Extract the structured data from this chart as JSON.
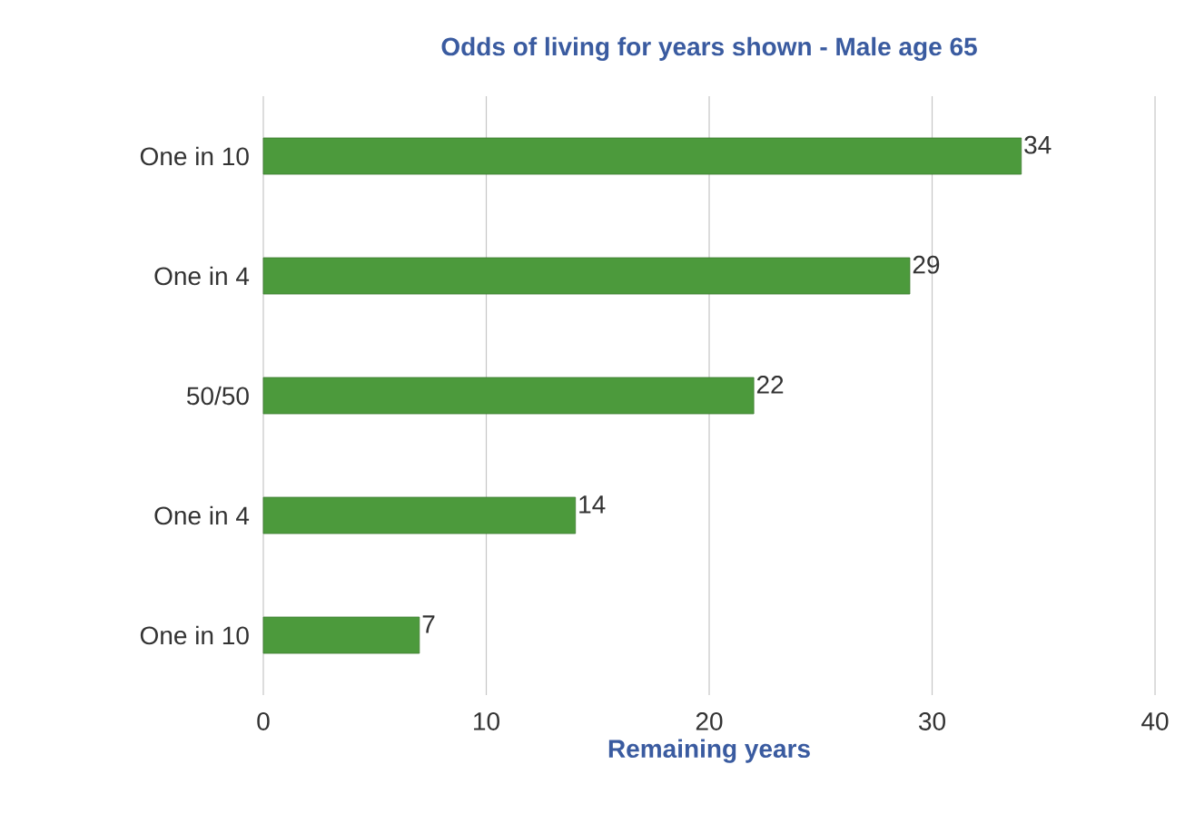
{
  "chart_data": {
    "type": "bar",
    "orientation": "horizontal",
    "title": "Odds of living for years shown - Male age 65",
    "xlabel": "Remaining years",
    "categories": [
      "One in 10",
      "One in 4",
      "50/50",
      "One in 4",
      "One in 10"
    ],
    "values": [
      34,
      29,
      22,
      14,
      7
    ],
    "color": "#4c9a3c",
    "data_labels": true,
    "xlim": [
      0,
      40
    ],
    "xticks": [
      0,
      10,
      20,
      30,
      40
    ],
    "grid": "x"
  }
}
